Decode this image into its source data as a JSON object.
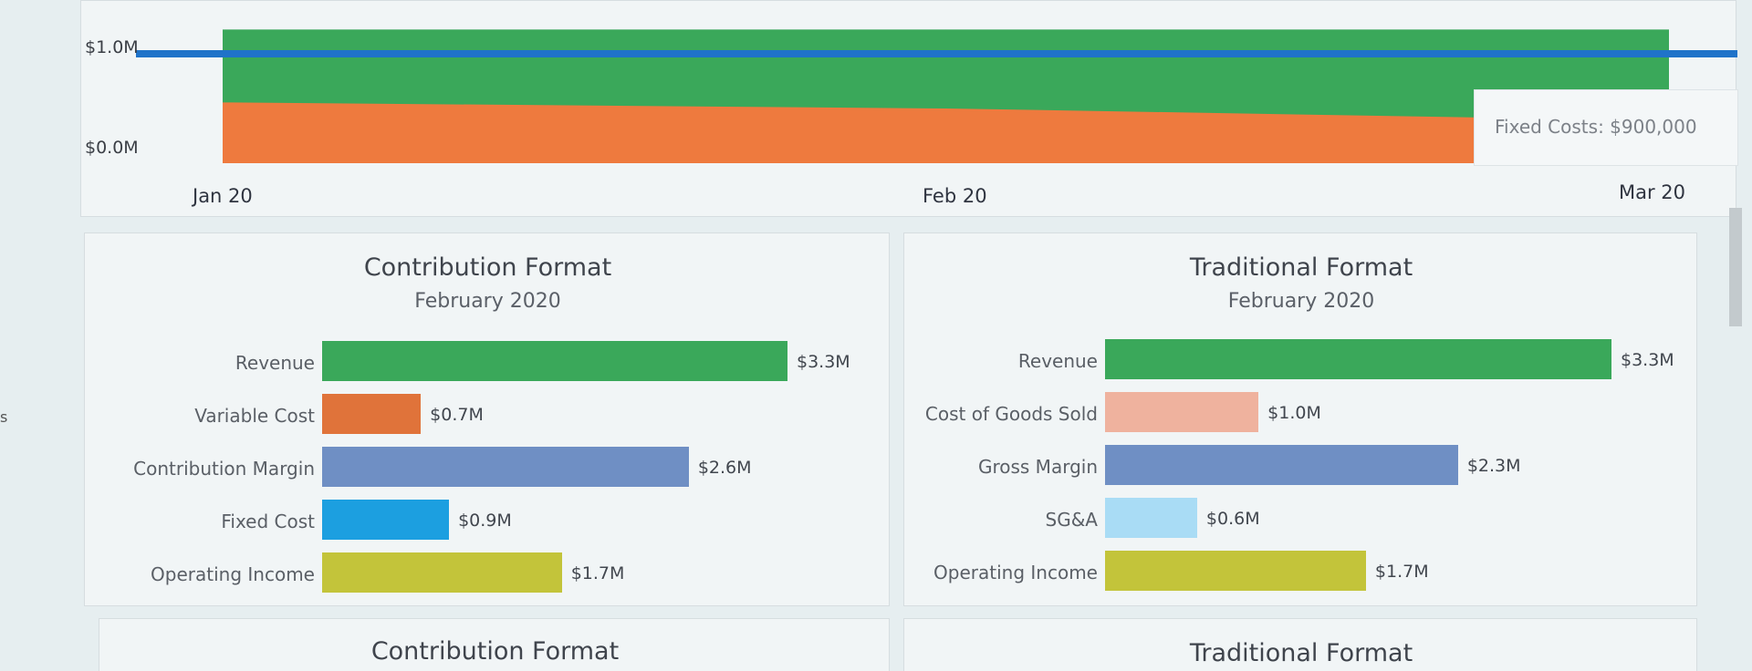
{
  "top_chart": {
    "y_ticks": [
      "$1.0M",
      "$0.0M"
    ],
    "x_ticks": [
      "Jan 20",
      "Feb 20",
      "Mar 20"
    ],
    "tooltip": "Fixed Costs: $900,000",
    "colors": {
      "revenue": "#3aa85a",
      "cost": "#ee7a3e",
      "fixed_line": "#1f73c9"
    }
  },
  "contribution": {
    "title": "Contribution Format",
    "subtitle": "February 2020"
  },
  "traditional": {
    "title": "Traditional Format",
    "subtitle": "February 2020"
  },
  "contribution_lower": {
    "title": "Contribution Format"
  },
  "traditional_lower": {
    "title": "Traditional Format"
  },
  "chart_data": [
    {
      "type": "area",
      "x": [
        "Jan 20",
        "Feb 20",
        "Mar 20"
      ],
      "ylim": [
        0,
        1.2
      ],
      "series": [
        {
          "values": [
            1.1,
            1.1,
            1.1
          ],
          "color": "#3aa85a"
        },
        {
          "values": [
            0.5,
            0.45,
            0.35
          ],
          "color": "#ee7a3e"
        }
      ],
      "reference_line": {
        "label": "Fixed Costs: $900,000",
        "value": 0.9,
        "color": "#1f73c9"
      }
    },
    {
      "type": "bar",
      "title": "Contribution Format",
      "subtitle": "February 2020",
      "categories": [
        "Revenue",
        "Variable Cost",
        "Contribution Margin",
        "Fixed Cost",
        "Operating Income"
      ],
      "values": [
        3.3,
        0.7,
        2.6,
        0.9,
        1.7
      ],
      "labels": [
        "$3.3M",
        "$0.7M",
        "$2.6M",
        "$0.9M",
        "$1.7M"
      ],
      "colors": [
        "#3aa85a",
        "#e0733a",
        "#6f8fc4",
        "#1c9fe0",
        "#c3c43a"
      ]
    },
    {
      "type": "bar",
      "title": "Traditional Format",
      "subtitle": "February 2020",
      "categories": [
        "Revenue",
        "Cost of Goods Sold",
        "Gross Margin",
        "SG&A",
        "Operating Income"
      ],
      "values": [
        3.3,
        1.0,
        2.3,
        0.6,
        1.7
      ],
      "labels": [
        "$3.3M",
        "$1.0M",
        "$2.3M",
        "$0.6M",
        "$1.7M"
      ],
      "colors": [
        "#3aa85a",
        "#efb29e",
        "#6f8fc4",
        "#a9dcf5",
        "#c3c43a"
      ]
    }
  ]
}
